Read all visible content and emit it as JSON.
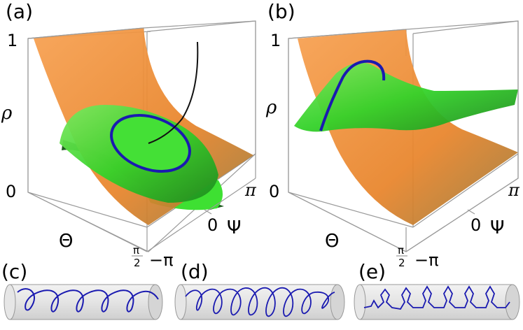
{
  "panels": {
    "a": {
      "label": "(a)",
      "rho_axis": "ρ",
      "theta_axis": "Θ",
      "psi_axis": "Ψ",
      "rho_top": "1",
      "rho_bottom": "0",
      "psi_max": "π",
      "psi_mid": "0",
      "psi_min": "−π",
      "theta_num": "π",
      "theta_den": "2"
    },
    "b": {
      "label": "(b)",
      "rho_axis": "ρ",
      "theta_axis": "Θ",
      "psi_axis": "Ψ",
      "rho_top": "1",
      "rho_bottom": "0",
      "psi_max": "π",
      "psi_mid": "0",
      "psi_min": "−π",
      "theta_num": "π",
      "theta_den": "2"
    },
    "c": {
      "label": "(c)"
    },
    "d": {
      "label": "(d)"
    },
    "e": {
      "label": "(e)"
    }
  },
  "colors": {
    "orange_surface": "#f28a2a",
    "green_surface": "#34d22a",
    "dark_green": "#1f5a1f",
    "curve_blue": "#1a1ab0",
    "box_line": "#9a9a9a",
    "olive": "#8a7a2a"
  }
}
